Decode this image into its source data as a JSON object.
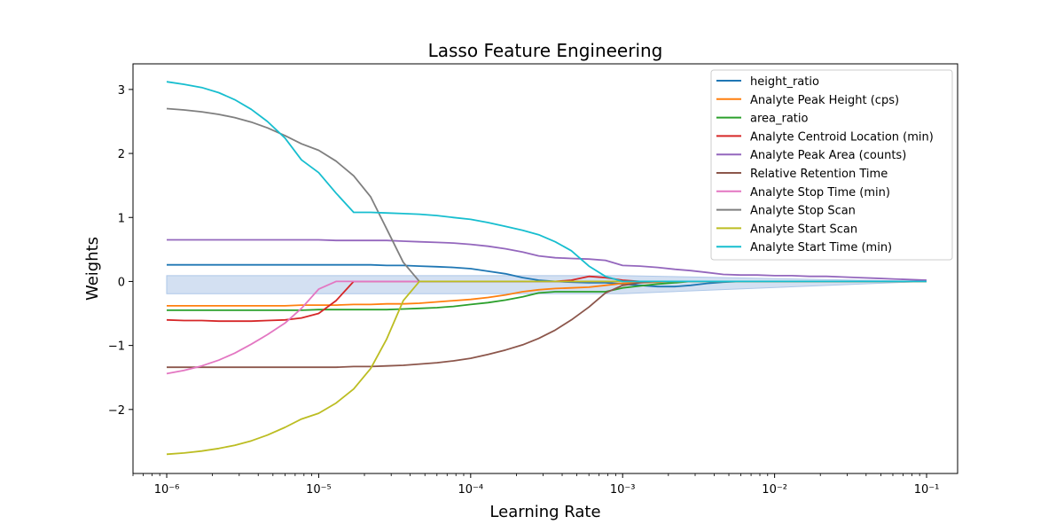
{
  "chart_data": {
    "type": "line",
    "title": "Lasso Feature Engineering",
    "xlabel": "Learning Rate",
    "ylabel": "Weights",
    "xscale": "log",
    "xlim": [
      6e-07,
      0.16
    ],
    "ylim": [
      -3.0,
      3.4
    ],
    "grid": false,
    "legend_position": "top-right",
    "x_ticks": [
      {
        "value": 1e-06,
        "label": "10⁻⁶"
      },
      {
        "value": 1e-05,
        "label": "10⁻⁵"
      },
      {
        "value": 0.0001,
        "label": "10⁻⁴"
      },
      {
        "value": 0.001,
        "label": "10⁻³"
      },
      {
        "value": 0.01,
        "label": "10⁻²"
      },
      {
        "value": 0.1,
        "label": "10⁻¹"
      }
    ],
    "y_ticks": [
      {
        "value": 3,
        "label": "3"
      },
      {
        "value": 2,
        "label": "2"
      },
      {
        "value": 1,
        "label": "1"
      },
      {
        "value": 0,
        "label": "0"
      },
      {
        "value": -1,
        "label": "−1"
      },
      {
        "value": -2,
        "label": "−2"
      }
    ],
    "x": [
      1e-06,
      1.3e-06,
      1.7e-06,
      2.2e-06,
      2.8e-06,
      3.6e-06,
      4.6e-06,
      6e-06,
      7.7e-06,
      1e-05,
      1.3e-05,
      1.7e-05,
      2.2e-05,
      2.8e-05,
      3.6e-05,
      4.6e-05,
      6e-05,
      7.7e-05,
      0.0001,
      0.00013,
      0.00017,
      0.00022,
      0.00028,
      0.00036,
      0.00046,
      0.0006,
      0.00077,
      0.001,
      0.0013,
      0.0017,
      0.0022,
      0.0028,
      0.0036,
      0.0046,
      0.006,
      0.0077,
      0.01,
      0.013,
      0.017,
      0.022,
      0.028,
      0.036,
      0.046,
      0.06,
      0.077,
      0.1
    ],
    "series": [
      {
        "name": "height_ratio",
        "color": "#1f77b4",
        "values": [
          0.26,
          0.26,
          0.26,
          0.26,
          0.26,
          0.26,
          0.26,
          0.26,
          0.26,
          0.26,
          0.26,
          0.26,
          0.26,
          0.25,
          0.25,
          0.24,
          0.23,
          0.22,
          0.2,
          0.16,
          0.12,
          0.06,
          0.02,
          0.0,
          -0.01,
          -0.02,
          -0.02,
          -0.04,
          -0.06,
          -0.08,
          -0.08,
          -0.06,
          -0.03,
          -0.01,
          0.0,
          0.0,
          0.0,
          0.0,
          0.0,
          0.0,
          0.0,
          0.0,
          0.0,
          0.0,
          0.0,
          0.0
        ]
      },
      {
        "name": "Analyte Peak Height (cps)",
        "color": "#ff7f0e",
        "values": [
          -0.38,
          -0.38,
          -0.38,
          -0.38,
          -0.38,
          -0.38,
          -0.38,
          -0.38,
          -0.37,
          -0.37,
          -0.37,
          -0.36,
          -0.36,
          -0.35,
          -0.35,
          -0.34,
          -0.32,
          -0.3,
          -0.28,
          -0.25,
          -0.21,
          -0.16,
          -0.13,
          -0.11,
          -0.1,
          -0.09,
          -0.06,
          -0.03,
          -0.02,
          -0.01,
          0.0,
          0.0,
          0.0,
          0.0,
          0.0,
          0.0,
          0.0,
          0.0,
          0.0,
          0.0,
          0.0,
          0.0,
          0.0,
          0.0,
          0.0,
          0.0
        ]
      },
      {
        "name": "area_ratio",
        "color": "#2ca02c",
        "values": [
          -0.45,
          -0.45,
          -0.45,
          -0.45,
          -0.45,
          -0.45,
          -0.45,
          -0.45,
          -0.45,
          -0.44,
          -0.44,
          -0.44,
          -0.44,
          -0.44,
          -0.43,
          -0.42,
          -0.41,
          -0.39,
          -0.36,
          -0.33,
          -0.29,
          -0.24,
          -0.18,
          -0.16,
          -0.16,
          -0.16,
          -0.16,
          -0.1,
          -0.07,
          -0.04,
          -0.02,
          0.0,
          0.0,
          0.0,
          0.0,
          0.0,
          0.0,
          0.0,
          0.0,
          0.0,
          0.0,
          0.0,
          0.0,
          0.0,
          0.0,
          0.0
        ]
      },
      {
        "name": "Analyte Centroid Location (min)",
        "color": "#d62728",
        "values": [
          -0.6,
          -0.61,
          -0.61,
          -0.62,
          -0.62,
          -0.62,
          -0.61,
          -0.6,
          -0.57,
          -0.5,
          -0.3,
          0.0,
          0.0,
          0.0,
          0.0,
          0.0,
          0.0,
          0.0,
          0.0,
          0.0,
          0.0,
          0.0,
          0.0,
          0.0,
          0.02,
          0.08,
          0.06,
          0.02,
          0.0,
          0.0,
          0.0,
          0.0,
          0.0,
          0.0,
          0.0,
          0.0,
          0.0,
          0.0,
          0.0,
          0.0,
          0.0,
          0.0,
          0.0,
          0.0,
          0.0,
          0.0
        ]
      },
      {
        "name": "Analyte Peak Area (counts)",
        "color": "#9467bd",
        "values": [
          0.65,
          0.65,
          0.65,
          0.65,
          0.65,
          0.65,
          0.65,
          0.65,
          0.65,
          0.65,
          0.64,
          0.64,
          0.64,
          0.64,
          0.63,
          0.62,
          0.61,
          0.6,
          0.58,
          0.55,
          0.51,
          0.46,
          0.4,
          0.37,
          0.36,
          0.35,
          0.33,
          0.25,
          0.24,
          0.22,
          0.19,
          0.17,
          0.14,
          0.11,
          0.1,
          0.1,
          0.09,
          0.09,
          0.08,
          0.08,
          0.07,
          0.06,
          0.05,
          0.04,
          0.03,
          0.02
        ]
      },
      {
        "name": "Relative Retention Time",
        "color": "#8c564b",
        "values": [
          -1.34,
          -1.34,
          -1.34,
          -1.34,
          -1.34,
          -1.34,
          -1.34,
          -1.34,
          -1.34,
          -1.34,
          -1.34,
          -1.33,
          -1.33,
          -1.32,
          -1.31,
          -1.29,
          -1.27,
          -1.24,
          -1.2,
          -1.14,
          -1.07,
          -0.99,
          -0.89,
          -0.76,
          -0.6,
          -0.4,
          -0.18,
          -0.06,
          -0.02,
          0.0,
          0.0,
          0.0,
          0.0,
          0.0,
          0.0,
          0.0,
          0.0,
          0.0,
          0.0,
          0.0,
          0.0,
          0.0,
          0.0,
          0.0,
          0.0,
          0.0
        ]
      },
      {
        "name": "Analyte Stop Time (min)",
        "color": "#e377c2",
        "values": [
          -1.44,
          -1.39,
          -1.32,
          -1.23,
          -1.12,
          -0.98,
          -0.83,
          -0.65,
          -0.42,
          -0.12,
          0.0,
          0.0,
          0.0,
          0.0,
          0.0,
          0.0,
          0.0,
          0.0,
          0.0,
          0.0,
          0.0,
          0.0,
          0.0,
          0.0,
          0.0,
          0.0,
          0.0,
          0.0,
          0.0,
          0.0,
          0.0,
          0.0,
          0.0,
          0.0,
          0.0,
          0.0,
          0.0,
          0.0,
          0.0,
          0.0,
          0.0,
          0.0,
          0.0,
          0.0,
          0.0,
          0.0
        ]
      },
      {
        "name": "Analyte Stop Scan",
        "color": "#7f7f7f",
        "values": [
          2.7,
          2.68,
          2.65,
          2.61,
          2.56,
          2.49,
          2.4,
          2.28,
          2.15,
          2.05,
          1.88,
          1.65,
          1.32,
          0.82,
          0.3,
          0.0,
          0.0,
          0.0,
          0.0,
          0.0,
          0.0,
          0.0,
          0.0,
          0.0,
          0.0,
          0.0,
          0.0,
          0.0,
          0.0,
          0.0,
          0.0,
          0.0,
          0.0,
          0.0,
          0.0,
          0.0,
          0.0,
          0.0,
          0.0,
          0.0,
          0.0,
          0.0,
          0.0,
          0.0,
          0.0,
          0.0
        ]
      },
      {
        "name": "Analyte Start Scan",
        "color": "#bcbd22",
        "values": [
          -2.7,
          -2.68,
          -2.65,
          -2.61,
          -2.56,
          -2.49,
          -2.4,
          -2.28,
          -2.15,
          -2.06,
          -1.9,
          -1.68,
          -1.36,
          -0.9,
          -0.3,
          0.0,
          0.0,
          0.0,
          0.0,
          0.0,
          0.0,
          0.0,
          0.0,
          0.0,
          0.0,
          0.0,
          0.0,
          0.0,
          0.0,
          0.0,
          0.0,
          0.0,
          0.0,
          0.0,
          0.0,
          0.0,
          0.0,
          0.0,
          0.0,
          0.0,
          0.0,
          0.0,
          0.0,
          0.0,
          0.0,
          0.0
        ]
      },
      {
        "name": "Analyte Start Time (min)",
        "color": "#17becf",
        "values": [
          3.12,
          3.08,
          3.03,
          2.95,
          2.84,
          2.69,
          2.5,
          2.24,
          1.9,
          1.7,
          1.38,
          1.08,
          1.08,
          1.07,
          1.06,
          1.05,
          1.03,
          1.0,
          0.97,
          0.92,
          0.86,
          0.8,
          0.73,
          0.62,
          0.48,
          0.24,
          0.08,
          0.0,
          0.0,
          0.0,
          0.0,
          0.0,
          0.0,
          0.0,
          0.0,
          0.0,
          0.0,
          0.0,
          0.0,
          0.0,
          0.0,
          0.0,
          0.0,
          0.0,
          0.0,
          0.0
        ]
      }
    ],
    "background_band": {
      "color": "#aec7e8",
      "x_from": 1e-06,
      "x_until": 0.001,
      "y_top": 0.09,
      "y_bottom": -0.19
    }
  }
}
